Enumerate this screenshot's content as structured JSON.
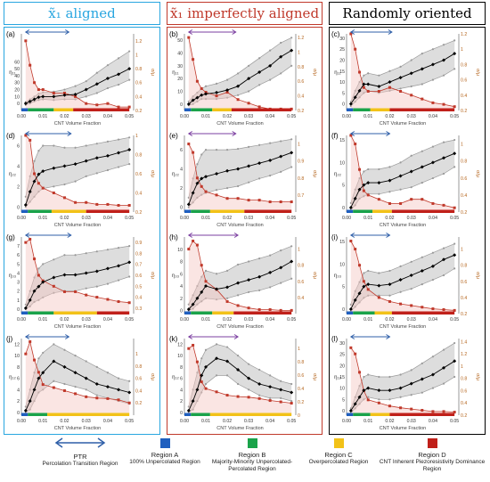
{
  "columns": [
    {
      "label": "x̃₁ aligned",
      "color": "#29a6e0",
      "border": "#29a6e0"
    },
    {
      "label": "x̃₁ imperfectly aligned",
      "color": "#c0392b",
      "border": "#c0392b"
    },
    {
      "label": "Randomly oriented",
      "color": "#000000",
      "border": "#000000"
    }
  ],
  "chart_data": [
    {
      "type": "line",
      "panel": "(a)",
      "ylabel": "η₁₁",
      "y2label": "σ/μ",
      "xlabel": "CNT Volume Fraction",
      "x": [
        0.002,
        0.004,
        0.006,
        0.008,
        0.01,
        0.015,
        0.02,
        0.025,
        0.03,
        0.035,
        0.04,
        0.045,
        0.05
      ],
      "ylim": [
        -10,
        100
      ],
      "y2lim": [
        0.2,
        1.3
      ],
      "ticks_y": [
        0,
        10,
        20,
        30,
        40,
        50,
        60
      ],
      "ticks_y2": [
        0.2,
        0.4,
        0.6,
        0.8,
        1.0,
        1.2
      ],
      "mean": [
        0,
        3,
        6,
        9,
        10,
        10,
        12,
        13,
        20,
        28,
        36,
        42,
        50
      ],
      "upper": [
        2,
        6,
        10,
        14,
        16,
        17,
        20,
        25,
        32,
        44,
        55,
        65,
        75
      ],
      "lower": [
        -2,
        0,
        3,
        5,
        6,
        5,
        6,
        6,
        10,
        15,
        22,
        27,
        34
      ],
      "cov": [
        1.2,
        0.85,
        0.6,
        0.5,
        0.5,
        0.45,
        0.45,
        0.4,
        0.3,
        0.28,
        0.3,
        0.25,
        0.25
      ],
      "ptr": [
        0.002,
        0.022
      ],
      "regions": [
        0.003,
        0.015,
        0.024
      ],
      "ptr_color": "#2f5fa8"
    },
    {
      "type": "line",
      "panel": "(b)",
      "ylabel": "η₁₁",
      "y2label": "σ/μ",
      "xlabel": "CNT Volume Fraction",
      "x": [
        0.002,
        0.004,
        0.006,
        0.008,
        0.01,
        0.015,
        0.02,
        0.025,
        0.03,
        0.035,
        0.04,
        0.045,
        0.05
      ],
      "ylim": [
        -5,
        55
      ],
      "y2lim": [
        0.2,
        1.25
      ],
      "ticks_y": [
        0,
        10,
        20,
        30,
        40,
        50
      ],
      "ticks_y2": [
        0.2,
        0.4,
        0.6,
        0.8,
        1.0,
        1.2
      ],
      "mean": [
        0,
        3,
        5,
        7,
        8,
        9,
        11,
        14,
        20,
        25,
        30,
        37,
        42
      ],
      "upper": [
        2,
        6,
        9,
        12,
        14,
        16,
        19,
        24,
        30,
        36,
        42,
        48,
        52
      ],
      "lower": [
        -1,
        0,
        2,
        4,
        4,
        4,
        5,
        7,
        10,
        15,
        19,
        24,
        30
      ],
      "cov": [
        1.2,
        0.9,
        0.6,
        0.5,
        0.45,
        0.4,
        0.45,
        0.35,
        0.3,
        0.25,
        0.22,
        0.22,
        0.22
      ],
      "ptr": [
        0.002,
        0.024
      ],
      "regions": [
        0.003,
        0.013,
        0.022
      ],
      "ptr_color": "#7b3fa0"
    },
    {
      "type": "line",
      "panel": "(c)",
      "ylabel": "η₁₁",
      "y2label": "σ/μ",
      "xlabel": "CNT Volume Fraction",
      "x": [
        0.002,
        0.004,
        0.006,
        0.008,
        0.01,
        0.015,
        0.02,
        0.025,
        0.03,
        0.035,
        0.04,
        0.045,
        0.05
      ],
      "ylim": [
        -3,
        32
      ],
      "y2lim": [
        0.2,
        1.2
      ],
      "ticks_y": [
        0,
        5,
        10,
        15,
        20,
        25,
        30
      ],
      "ticks_y2": [
        0.2,
        0.4,
        0.6,
        0.8,
        1.0,
        1.2
      ],
      "mean": [
        0,
        3,
        6,
        9,
        9,
        8,
        10,
        12,
        14,
        16,
        18,
        20,
        23
      ],
      "upper": [
        1,
        6,
        10,
        13,
        14,
        13,
        15,
        17,
        20,
        23,
        25,
        27,
        29
      ],
      "lower": [
        -1,
        1,
        3,
        5,
        6,
        5,
        6,
        7,
        8,
        9,
        11,
        13,
        16
      ],
      "cov": [
        1.2,
        1.0,
        0.7,
        0.5,
        0.45,
        0.45,
        0.5,
        0.45,
        0.4,
        0.35,
        0.3,
        0.28,
        0.25
      ],
      "ptr": [
        0.002,
        0.021
      ],
      "regions": [
        0.003,
        0.011,
        0.02
      ],
      "ptr_color": "#2f5fa8"
    },
    {
      "type": "line",
      "panel": "(d)",
      "ylabel": "η₂₂",
      "y2label": "σ/μ",
      "xlabel": "CNT Volume Fraction",
      "x": [
        0.002,
        0.004,
        0.006,
        0.008,
        0.01,
        0.015,
        0.02,
        0.025,
        0.03,
        0.035,
        0.04,
        0.045,
        0.05
      ],
      "ylim": [
        -0.5,
        7
      ],
      "y2lim": [
        0.2,
        1.0
      ],
      "ticks_y": [
        0,
        2,
        4,
        6
      ],
      "ticks_y2": [
        0.2,
        0.4,
        0.6,
        0.8,
        1.0
      ],
      "mean": [
        0.2,
        1.5,
        2.5,
        3.2,
        3.5,
        3.8,
        4.0,
        4.2,
        4.5,
        4.8,
        5.0,
        5.3,
        5.6
      ],
      "upper": [
        1,
        3,
        4.5,
        5.5,
        6,
        6,
        5.8,
        5.8,
        6,
        6.2,
        6.4,
        6.6,
        6.8
      ],
      "lower": [
        0,
        0.5,
        1,
        1.5,
        1.8,
        2,
        2.2,
        2.5,
        3,
        3.3,
        3.6,
        3.9,
        4.2
      ],
      "cov": [
        1.0,
        0.95,
        0.6,
        0.5,
        0.45,
        0.4,
        0.35,
        0.3,
        0.3,
        0.28,
        0.28,
        0.27,
        0.27
      ],
      "ptr": [
        0.002,
        0.023
      ],
      "regions": [
        0.003,
        0.014,
        0.03
      ],
      "ptr_color": "#2f5fa8"
    },
    {
      "type": "line",
      "panel": "(e)",
      "ylabel": "η₂₂",
      "y2label": "σ/μ",
      "xlabel": "CNT Volume Fraction",
      "x": [
        0.002,
        0.004,
        0.006,
        0.008,
        0.01,
        0.015,
        0.02,
        0.025,
        0.03,
        0.035,
        0.04,
        0.045,
        0.05
      ],
      "ylim": [
        -0.5,
        7.5
      ],
      "y2lim": [
        0.6,
        1.05
      ],
      "ticks_y": [
        0,
        2,
        4,
        6
      ],
      "ticks_y2": [
        0.7,
        0.8,
        0.9,
        1.0
      ],
      "mean": [
        0.3,
        1.5,
        2.5,
        3,
        3.2,
        3.5,
        3.8,
        4.0,
        4.3,
        4.6,
        4.9,
        5.3,
        5.7
      ],
      "upper": [
        1,
        3,
        4.5,
        5.5,
        6,
        6,
        6,
        6.1,
        6.3,
        6.5,
        6.7,
        6.9,
        7.1
      ],
      "lower": [
        0,
        0.5,
        1,
        1.3,
        1.5,
        1.8,
        2,
        2.2,
        2.6,
        3,
        3.3,
        3.7,
        4.2
      ],
      "cov": [
        1.0,
        0.95,
        0.8,
        0.75,
        0.72,
        0.7,
        0.68,
        0.68,
        0.67,
        0.67,
        0.66,
        0.66,
        0.66
      ],
      "ptr": [
        0.002,
        0.024
      ],
      "regions": [
        0.003,
        0.012,
        0.028
      ],
      "ptr_color": "#7b3fa0"
    },
    {
      "type": "line",
      "panel": "(f)",
      "ylabel": "η₂₂",
      "y2label": "σ/μ",
      "xlabel": "CNT Volume Fraction",
      "x": [
        0.002,
        0.004,
        0.006,
        0.008,
        0.01,
        0.015,
        0.02,
        0.025,
        0.03,
        0.035,
        0.04,
        0.045,
        0.05
      ],
      "ylim": [
        -1,
        16
      ],
      "y2lim": [
        0.2,
        1.1
      ],
      "ticks_y": [
        0,
        5,
        10,
        15
      ],
      "ticks_y2": [
        0.2,
        0.4,
        0.6,
        0.8,
        1.0
      ],
      "mean": [
        0,
        2,
        4,
        5,
        5.5,
        5.5,
        6,
        7,
        8,
        9,
        10,
        11,
        12
      ],
      "upper": [
        1,
        4,
        6.5,
        8,
        8.5,
        8.5,
        9,
        10,
        11.5,
        12.5,
        13.5,
        14.5,
        15
      ],
      "lower": [
        -0.5,
        0.5,
        2,
        2.5,
        3,
        3,
        3.5,
        4,
        4.5,
        5.5,
        6.5,
        7.5,
        9
      ],
      "cov": [
        1.1,
        1.0,
        0.7,
        0.45,
        0.4,
        0.35,
        0.3,
        0.3,
        0.35,
        0.35,
        0.3,
        0.28,
        0.25
      ],
      "ptr": [
        0.002,
        0.02
      ],
      "regions": [
        0.003,
        0.012,
        0.021
      ],
      "ptr_color": "#2f5fa8"
    },
    {
      "type": "line",
      "panel": "(g)",
      "ylabel": "η₃₃",
      "y2label": "σ/μ",
      "xlabel": "CNT Volume Fraction",
      "x": [
        0.002,
        0.004,
        0.006,
        0.008,
        0.01,
        0.015,
        0.02,
        0.025,
        0.03,
        0.035,
        0.04,
        0.045,
        0.05
      ],
      "ylim": [
        -0.5,
        8
      ],
      "y2lim": [
        0.25,
        0.95
      ],
      "ticks_y": [
        0,
        1,
        2,
        3,
        4,
        5,
        6,
        7
      ],
      "ticks_y2": [
        0.3,
        0.4,
        0.5,
        0.6,
        0.7,
        0.8,
        0.9
      ],
      "mean": [
        0.1,
        1,
        2,
        2.5,
        3,
        3.5,
        3.8,
        3.8,
        4,
        4.2,
        4.5,
        4.8,
        5.2
      ],
      "upper": [
        0.5,
        2,
        3.5,
        4.5,
        5,
        5.5,
        6,
        6,
        6.2,
        6.4,
        6.6,
        6.8,
        7
      ],
      "lower": [
        0,
        0.3,
        0.8,
        1,
        1.3,
        1.8,
        2,
        2,
        2.3,
        2.5,
        2.8,
        3.2,
        3.6
      ],
      "cov": [
        0.9,
        0.93,
        0.75,
        0.6,
        0.55,
        0.5,
        0.45,
        0.45,
        0.42,
        0.4,
        0.38,
        0.36,
        0.35
      ],
      "ptr": [
        0.002,
        0.023
      ],
      "regions": [
        0.003,
        0.015,
        0.035
      ],
      "ptr_color": "#2f5fa8"
    },
    {
      "type": "line",
      "panel": "(h)",
      "ylabel": "η₃₃",
      "y2label": "σ/μ",
      "xlabel": "CNT Volume Fraction",
      "x": [
        0.002,
        0.004,
        0.006,
        0.008,
        0.01,
        0.015,
        0.02,
        0.025,
        0.03,
        0.035,
        0.04,
        0.045,
        0.05
      ],
      "ylim": [
        -0.5,
        12
      ],
      "y2lim": [
        0.2,
        1.15
      ],
      "ticks_y": [
        0,
        2,
        4,
        6,
        8,
        10
      ],
      "ticks_y2": [
        0.4,
        0.6,
        0.8,
        1.0
      ],
      "mean": [
        0.2,
        1,
        2,
        3,
        4,
        3.5,
        3.8,
        4.5,
        5,
        5.5,
        6.2,
        7,
        8
      ],
      "upper": [
        1,
        2.5,
        4,
        5.5,
        6.5,
        6,
        6.5,
        7.5,
        8,
        8.5,
        9,
        9.8,
        10.5
      ],
      "lower": [
        0,
        0.3,
        1,
        1.5,
        2,
        1.8,
        2,
        2.5,
        3,
        3.3,
        3.8,
        4.5,
        5.2
      ],
      "cov": [
        1.0,
        1.1,
        1.05,
        0.8,
        0.6,
        0.5,
        0.35,
        0.3,
        0.27,
        0.25,
        0.25,
        0.24,
        0.24
      ],
      "ptr": [
        0.002,
        0.025
      ],
      "regions": [
        0.003,
        0.013,
        0.023
      ],
      "ptr_color": "#7b3fa0"
    },
    {
      "type": "line",
      "panel": "(i)",
      "ylabel": "η₃₃",
      "y2label": "σ/μ",
      "xlabel": "CNT Volume Fraction",
      "x": [
        0.002,
        0.004,
        0.006,
        0.008,
        0.01,
        0.015,
        0.02,
        0.025,
        0.03,
        0.035,
        0.04,
        0.045,
        0.05
      ],
      "ylim": [
        -1,
        16
      ],
      "y2lim": [
        0.2,
        1.15
      ],
      "ticks_y": [
        0,
        5,
        10,
        15
      ],
      "ticks_y2": [
        0.2,
        0.4,
        0.6,
        0.8,
        1.0
      ],
      "mean": [
        0,
        2,
        3.5,
        5,
        5.5,
        5.2,
        5.5,
        6.5,
        7.5,
        8.5,
        9.5,
        11,
        12
      ],
      "upper": [
        1,
        4,
        6,
        8,
        8.5,
        8,
        8.5,
        9.5,
        10.5,
        11.5,
        12.5,
        13.5,
        14.5
      ],
      "lower": [
        -0.5,
        0.5,
        1.5,
        2.5,
        3,
        3,
        3,
        3.8,
        4.5,
        5.5,
        6.5,
        7.5,
        9
      ],
      "cov": [
        1.1,
        1.0,
        0.8,
        0.6,
        0.5,
        0.4,
        0.35,
        0.32,
        0.3,
        0.28,
        0.26,
        0.25,
        0.24
      ],
      "ptr": [
        0.002,
        0.02
      ],
      "regions": [
        0.003,
        0.013,
        0.021
      ],
      "ptr_color": "#2f5fa8"
    },
    {
      "type": "line",
      "panel": "(j)",
      "ylabel": "η₁₂",
      "y2label": "σ/μ",
      "xlabel": "CNT Volume Fraction",
      "x": [
        0.002,
        0.004,
        0.006,
        0.008,
        0.01,
        0.015,
        0.02,
        0.025,
        0.03,
        0.035,
        0.04,
        0.045,
        0.05
      ],
      "ylim": [
        -0.5,
        13
      ],
      "y2lim": [
        0.0,
        1.25
      ],
      "ticks_y": [
        0,
        2,
        4,
        6,
        8,
        10,
        12
      ],
      "ticks_y2": [
        0.2,
        0.4,
        0.6,
        0.8,
        1.0
      ],
      "mean": [
        0.3,
        2,
        4,
        6,
        7,
        9,
        8,
        7,
        6,
        5,
        4.5,
        4,
        3.5
      ],
      "upper": [
        1,
        4,
        7,
        9.5,
        10.5,
        12,
        11,
        10,
        9,
        8,
        7,
        6,
        5.5
      ],
      "lower": [
        0,
        0.5,
        2,
        3.5,
        4,
        5.5,
        5,
        4.5,
        4,
        3,
        2.5,
        2,
        1.5
      ],
      "cov": [
        1.0,
        1.2,
        0.9,
        0.7,
        0.5,
        0.45,
        0.4,
        0.35,
        0.3,
        0.28,
        0.27,
        0.25,
        0.2
      ],
      "ptr": [
        0.002,
        0.022
      ],
      "regions": [
        0.003,
        0.012,
        0.05
      ],
      "ptr_color": "#2f5fa8"
    },
    {
      "type": "line",
      "panel": "(k)",
      "ylabel": "η₁₂",
      "y2label": "σ/μ",
      "xlabel": "CNT Volume Fraction",
      "x": [
        0.002,
        0.004,
        0.006,
        0.008,
        0.01,
        0.015,
        0.02,
        0.025,
        0.03,
        0.035,
        0.04,
        0.045,
        0.05
      ],
      "ylim": [
        -0.5,
        13
      ],
      "y2lim": [
        0.0,
        1.15
      ],
      "ticks_y": [
        0,
        2,
        4,
        6,
        8,
        10,
        12
      ],
      "ticks_y2": [
        0.0,
        0.2,
        0.4,
        0.6,
        0.8,
        1.0
      ],
      "mean": [
        0.3,
        2,
        4,
        6.5,
        8,
        9.5,
        9,
        7.5,
        6,
        5,
        4.5,
        4,
        3.5
      ],
      "upper": [
        1,
        4,
        7,
        9.5,
        11,
        12,
        11.5,
        10,
        8.5,
        7.5,
        6.5,
        5.5,
        5
      ],
      "lower": [
        0,
        0.5,
        2,
        3.5,
        5,
        6.5,
        6.5,
        5,
        4,
        3,
        2.5,
        2.5,
        2
      ],
      "cov": [
        1.0,
        1.05,
        0.8,
        0.5,
        0.4,
        0.35,
        0.3,
        0.28,
        0.27,
        0.25,
        0.22,
        0.2,
        0.18
      ],
      "ptr": [
        0.002,
        0.025
      ],
      "regions": [
        0.003,
        0.012,
        0.05
      ],
      "ptr_color": "#7b3fa0"
    },
    {
      "type": "line",
      "panel": "(l)",
      "ylabel": "η₁₂",
      "y2label": "σ/μ",
      "xlabel": "CNT Volume Fraction",
      "x": [
        0.002,
        0.004,
        0.006,
        0.008,
        0.01,
        0.015,
        0.02,
        0.025,
        0.03,
        0.035,
        0.04,
        0.045,
        0.05
      ],
      "ylim": [
        -2,
        32
      ],
      "y2lim": [
        0.2,
        1.45
      ],
      "ticks_y": [
        0,
        5,
        10,
        15,
        20,
        25,
        30
      ],
      "ticks_y2": [
        0.2,
        0.4,
        0.6,
        0.8,
        1.0,
        1.2,
        1.4
      ],
      "mean": [
        0,
        3,
        6,
        9,
        10,
        9,
        9,
        10,
        12,
        14,
        16,
        19,
        22
      ],
      "upper": [
        1,
        6,
        11,
        15,
        16,
        15,
        15,
        16,
        18,
        21,
        24,
        27,
        30
      ],
      "lower": [
        -1,
        1,
        3,
        5,
        6,
        5,
        5,
        6,
        7,
        8,
        10,
        12,
        15
      ],
      "cov": [
        1.3,
        1.2,
        0.9,
        0.6,
        0.45,
        0.4,
        0.35,
        0.32,
        0.3,
        0.28,
        0.26,
        0.26,
        0.25
      ],
      "ptr": [
        0.002,
        0.02
      ],
      "regions": [
        0.003,
        0.011,
        0.02
      ],
      "ptr_color": "#2f5fa8"
    }
  ],
  "xticks": [
    0,
    0.01,
    0.02,
    0.03,
    0.04,
    0.05
  ],
  "xtick_labels": [
    "0.00",
    "0.01",
    "0.02",
    "0.03",
    "0.04",
    "0.05"
  ],
  "colors": {
    "mean": "#000000",
    "band": "#cfcfcf",
    "bandline": "#9a9a9a",
    "cov": "#c0392b",
    "covfill": "#f3c6c0",
    "regionA": "#1f5fbf",
    "regionB": "#1aa34a",
    "regionC": "#f2c218",
    "regionD": "#c0201a",
    "axis": "#555555",
    "tick": "#333333",
    "y2tick": "#b5651d"
  },
  "legend": [
    {
      "title": "PTR",
      "desc": "Percolation Transition Region"
    },
    {
      "title": "Region A",
      "desc": "100% Unpercolated Region"
    },
    {
      "title": "Region B",
      "desc": "Majority-Minority Unpercolated-Percolated Region"
    },
    {
      "title": "Region C",
      "desc": "Overpercolated Region"
    },
    {
      "title": "Region D",
      "desc": "CNT Inherent Piezoresistivity Dominance Region"
    }
  ]
}
